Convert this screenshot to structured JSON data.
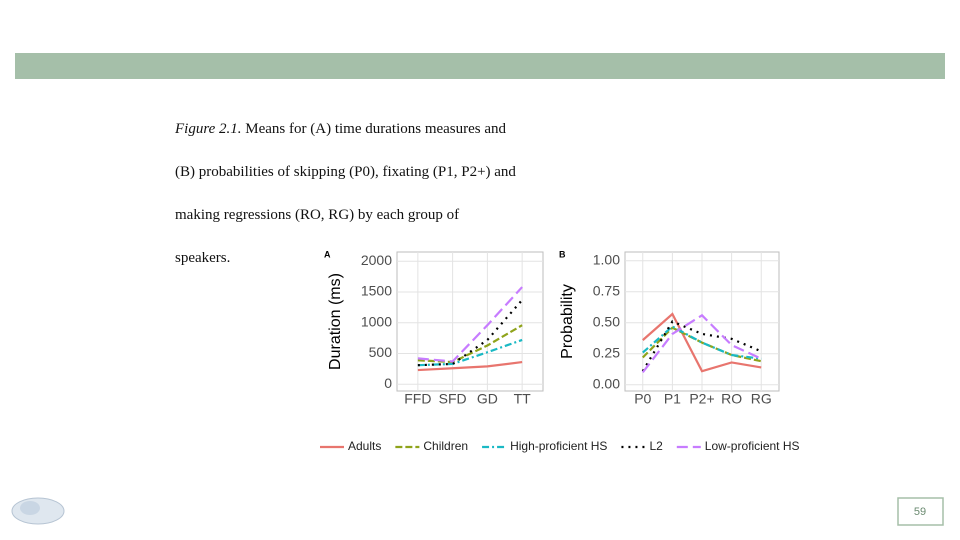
{
  "slide": {
    "caption_label": "Figure 2.1.",
    "caption_lines": [
      "Means for (A) time durations measures and",
      "(B) probabilities of skipping (P0), fixating (P1, P2+) and",
      "making regressions (RO, RG) by each group of",
      "speakers."
    ],
    "page_number": "59"
  },
  "chart_data": [
    {
      "type": "line",
      "panel": "A",
      "y_label": "Duration (ms)",
      "categories": [
        "FFD",
        "SFD",
        "GD",
        "TT"
      ],
      "ylim": [
        -110,
        2150
      ],
      "yticks": [
        0,
        500,
        1000,
        1500,
        2000
      ],
      "grid": true,
      "series": [
        {
          "name": "Adults",
          "color": "#e8756e",
          "values": [
            230,
            260,
            290,
            360
          ]
        },
        {
          "name": "Children",
          "color": "#8fa31a",
          "values": [
            390,
            360,
            630,
            960
          ]
        },
        {
          "name": "High-proficient HS",
          "color": "#1ab9c4",
          "values": [
            310,
            330,
            520,
            720
          ]
        },
        {
          "name": "L2",
          "color": "#000000",
          "values": [
            310,
            330,
            720,
            1370
          ]
        },
        {
          "name": "Low-proficient HS",
          "color": "#c77cff",
          "values": [
            420,
            370,
            960,
            1580
          ]
        }
      ]
    },
    {
      "type": "line",
      "panel": "B",
      "y_label": "Probability",
      "categories": [
        "P0",
        "P1",
        "P2+",
        "RO",
        "RG"
      ],
      "ylim": [
        -0.05,
        1.07
      ],
      "yticks": [
        {
          "value": 0,
          "label": "0.00"
        },
        {
          "value": 0.25,
          "label": "0.25"
        },
        {
          "value": 0.5,
          "label": "0.50"
        },
        {
          "value": 0.75,
          "label": "0.75"
        },
        {
          "value": 1,
          "label": "1.00"
        }
      ],
      "grid": true,
      "series": [
        {
          "color": "#e8756e",
          "values": [
            0.36,
            0.57,
            0.11,
            0.18,
            0.14
          ]
        },
        {
          "color": "#8fa31a",
          "values": [
            0.22,
            0.46,
            0.34,
            0.24,
            0.19
          ]
        },
        {
          "color": "#1ab9c4",
          "values": [
            0.26,
            0.47,
            0.34,
            0.24,
            0.21
          ]
        },
        {
          "color": "#000000",
          "values": [
            0.11,
            0.51,
            0.41,
            0.37,
            0.27
          ]
        },
        {
          "color": "#c77cff",
          "values": [
            0.1,
            0.41,
            0.56,
            0.32,
            0.21
          ]
        }
      ]
    }
  ]
}
